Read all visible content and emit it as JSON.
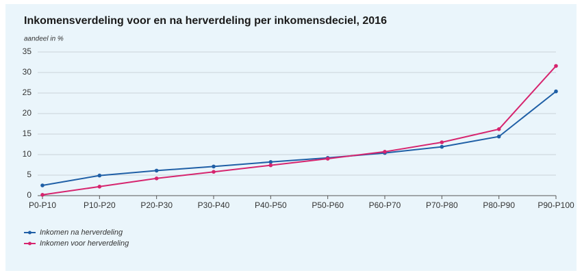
{
  "chart_data": {
    "type": "line",
    "title": "Inkomensverdeling voor en na herverdeling per inkomensdeciel, 2016",
    "y_label": "aandeel in %",
    "categories": [
      "P0-P10",
      "P10-P20",
      "P20-P30",
      "P30-P40",
      "P40-P50",
      "P50-P60",
      "P60-P70",
      "P70-P80",
      "P80-P90",
      "P90-P100"
    ],
    "series": [
      {
        "name": "Inkomen na herverdeling",
        "color": "#1f5fa6",
        "values": [
          2.5,
          4.9,
          6.1,
          7.1,
          8.2,
          9.2,
          10.4,
          11.9,
          14.4,
          25.4
        ]
      },
      {
        "name": "Inkomen voor herverdeling",
        "color": "#d6246e",
        "values": [
          0.2,
          2.2,
          4.2,
          5.8,
          7.4,
          9.0,
          10.7,
          13.0,
          16.2,
          31.6
        ]
      }
    ],
    "ylim": [
      0,
      35
    ],
    "yticks": [
      0,
      5,
      10,
      15,
      20,
      25,
      30,
      35
    ],
    "grid": true
  }
}
